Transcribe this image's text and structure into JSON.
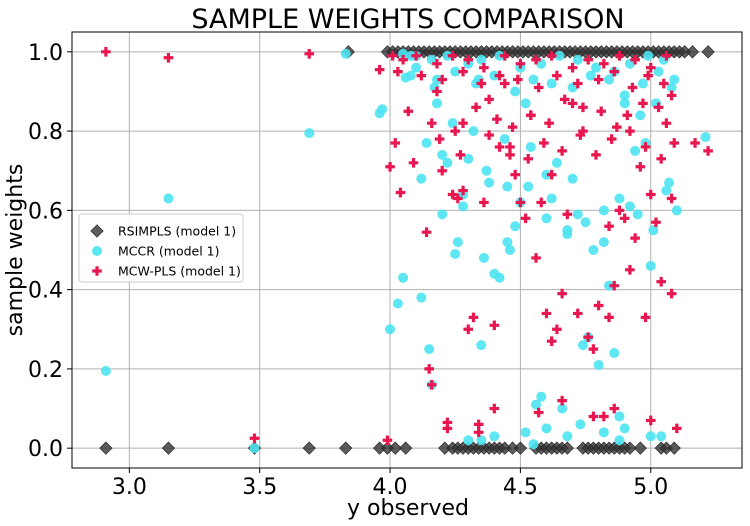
{
  "chart_data": {
    "type": "scatter",
    "title": "SAMPLE WEIGHTS COMPARISON",
    "xlabel": "y observed",
    "ylabel": "sample weights",
    "xlim": [
      2.78,
      5.35
    ],
    "ylim": [
      -0.05,
      1.05
    ],
    "xticks": [
      3.0,
      3.5,
      4.0,
      4.5,
      5.0
    ],
    "xtick_labels": [
      "3.0",
      "3.5",
      "4.0",
      "4.5",
      "5.0"
    ],
    "yticks": [
      0.0,
      0.2,
      0.4,
      0.6,
      0.8,
      1.0
    ],
    "ytick_labels": [
      "0.0",
      "0.2",
      "0.4",
      "0.6",
      "0.8",
      "1.0"
    ],
    "grid": true,
    "legend_position": "center-left",
    "series": [
      {
        "name": "RSIMPLS (model 1)",
        "marker": "diamond",
        "color": "#333333",
        "x": [
          2.91,
          3.15,
          3.48,
          3.69,
          3.83,
          3.96,
          3.99,
          4.02,
          4.06,
          4.21,
          4.24,
          4.26,
          4.28,
          4.3,
          4.32,
          4.34,
          4.36,
          4.38,
          4.4,
          4.42,
          4.44,
          4.47,
          4.5,
          4.56,
          4.58,
          4.6,
          4.62,
          4.64,
          4.66,
          4.68,
          4.74,
          4.76,
          4.78,
          4.8,
          4.82,
          4.84,
          4.86,
          4.88,
          4.9,
          4.92,
          4.96,
          5.04,
          5.06,
          5.09,
          3.84,
          3.99,
          4.01,
          4.03,
          4.05,
          4.07,
          4.09,
          4.11,
          4.13,
          4.15,
          4.17,
          4.19,
          4.21,
          4.23,
          4.25,
          4.27,
          4.29,
          4.31,
          4.33,
          4.35,
          4.37,
          4.39,
          4.41,
          4.43,
          4.45,
          4.47,
          4.49,
          4.51,
          4.53,
          4.55,
          4.57,
          4.59,
          4.61,
          4.63,
          4.65,
          4.67,
          4.69,
          4.71,
          4.73,
          4.75,
          4.77,
          4.79,
          4.81,
          4.83,
          4.85,
          4.87,
          4.89,
          4.91,
          4.93,
          4.95,
          4.97,
          4.99,
          5.01,
          5.03,
          5.05,
          5.07,
          5.09,
          5.11,
          5.13,
          5.16,
          5.22
        ],
        "y": [
          0.0,
          0.0,
          0.0,
          0.0,
          0.0,
          0.0,
          0.0,
          0.0,
          0.0,
          0.0,
          0.0,
          0.0,
          0.0,
          0.0,
          0.0,
          0.0,
          0.0,
          0.0,
          0.0,
          0.0,
          0.0,
          0.0,
          0.0,
          0.0,
          0.0,
          0.0,
          0.0,
          0.0,
          0.0,
          0.0,
          0.0,
          0.0,
          0.0,
          0.0,
          0.0,
          0.0,
          0.0,
          0.0,
          0.0,
          0.0,
          0.0,
          0.0,
          0.0,
          0.0,
          1.0,
          1.0,
          1.0,
          1.0,
          1.0,
          1.0,
          1.0,
          1.0,
          1.0,
          1.0,
          1.0,
          1.0,
          1.0,
          1.0,
          1.0,
          1.0,
          1.0,
          1.0,
          1.0,
          1.0,
          1.0,
          1.0,
          1.0,
          1.0,
          1.0,
          1.0,
          1.0,
          1.0,
          1.0,
          1.0,
          1.0,
          1.0,
          1.0,
          1.0,
          1.0,
          1.0,
          1.0,
          1.0,
          1.0,
          1.0,
          1.0,
          1.0,
          1.0,
          1.0,
          1.0,
          1.0,
          1.0,
          1.0,
          1.0,
          1.0,
          1.0,
          1.0,
          1.0,
          1.0,
          1.0,
          1.0,
          1.0,
          1.0,
          1.0,
          1.0,
          1.0
        ]
      },
      {
        "name": "MCCR (model 1)",
        "marker": "circle",
        "color": "#4de3f2",
        "x": [
          2.91,
          3.15,
          3.48,
          3.69,
          3.83,
          3.96,
          3.97,
          4.0,
          4.03,
          4.05,
          4.06,
          4.08,
          4.1,
          4.12,
          4.14,
          4.15,
          4.16,
          4.17,
          4.18,
          4.2,
          4.22,
          4.24,
          4.25,
          4.26,
          4.28,
          4.3,
          4.32,
          4.34,
          4.35,
          4.36,
          4.38,
          4.4,
          4.42,
          4.44,
          4.45,
          4.46,
          4.48,
          4.5,
          4.52,
          4.54,
          4.56,
          4.58,
          4.6,
          4.62,
          4.64,
          4.66,
          4.68,
          4.7,
          4.72,
          4.74,
          4.76,
          4.78,
          4.8,
          4.82,
          4.84,
          4.86,
          4.88,
          4.9,
          4.92,
          4.94,
          4.96,
          4.98,
          5.0,
          5.02,
          5.04,
          5.06,
          5.08,
          5.1,
          5.21,
          4.05,
          4.1,
          4.16,
          4.22,
          4.3,
          4.35,
          4.42,
          4.5,
          4.58,
          4.65,
          4.72,
          4.79,
          4.86,
          4.92,
          4.99,
          5.05,
          4.08,
          4.18,
          4.25,
          4.33,
          4.4,
          4.48,
          4.55,
          4.62,
          4.7,
          4.77,
          4.84,
          4.9,
          4.97,
          5.03,
          5.09,
          4.12,
          4.2,
          4.28,
          4.37,
          4.45,
          4.53,
          4.6,
          4.68,
          4.75,
          4.82,
          4.88,
          4.95,
          5.01,
          5.07,
          4.3,
          4.4,
          4.52,
          4.6,
          4.73,
          4.82,
          4.9,
          5.0,
          4.35,
          4.55,
          4.68,
          4.88
        ],
        "y": [
          0.195,
          0.63,
          0.0,
          0.795,
          0.995,
          0.845,
          0.855,
          0.3,
          0.365,
          0.43,
          0.935,
          0.99,
          0.96,
          0.68,
          0.77,
          0.25,
          0.16,
          0.91,
          0.87,
          0.74,
          0.72,
          0.82,
          0.49,
          0.52,
          0.61,
          0.73,
          0.8,
          0.93,
          0.26,
          0.48,
          0.67,
          0.44,
          0.43,
          0.78,
          0.66,
          0.5,
          0.56,
          0.62,
          0.87,
          0.76,
          0.11,
          0.13,
          0.69,
          0.63,
          0.72,
          0.1,
          0.55,
          0.68,
          0.59,
          0.26,
          0.28,
          0.5,
          0.21,
          0.52,
          0.41,
          0.24,
          0.08,
          0.87,
          0.61,
          0.75,
          0.84,
          0.77,
          0.46,
          0.87,
          0.03,
          0.65,
          0.91,
          0.6,
          0.785,
          0.995,
          0.99,
          0.98,
          0.99,
          0.97,
          0.98,
          0.99,
          0.96,
          0.97,
          0.99,
          0.98,
          0.96,
          0.95,
          0.97,
          0.99,
          0.98,
          0.94,
          0.93,
          0.95,
          0.92,
          0.94,
          0.9,
          0.93,
          0.92,
          0.91,
          0.94,
          0.93,
          0.89,
          0.92,
          0.95,
          0.93,
          0.38,
          0.59,
          0.64,
          0.7,
          0.52,
          0.66,
          0.58,
          0.54,
          0.57,
          0.6,
          0.63,
          0.59,
          0.55,
          0.67,
          0.02,
          0.03,
          0.04,
          0.05,
          0.06,
          0.04,
          0.05,
          0.03,
          0.02,
          0.01,
          0.03,
          0.02
        ]
      },
      {
        "name": "MCW-PLS (model 1)",
        "marker": "plus",
        "color": "#e8174f",
        "x": [
          2.91,
          3.15,
          3.48,
          3.69,
          3.96,
          3.99,
          4.0,
          4.02,
          4.04,
          4.14,
          4.15,
          4.16,
          4.18,
          4.2,
          4.22,
          4.24,
          4.26,
          4.28,
          4.3,
          4.32,
          4.34,
          4.36,
          4.38,
          4.4,
          4.42,
          4.44,
          4.46,
          4.48,
          4.5,
          4.52,
          4.54,
          4.56,
          4.58,
          4.6,
          4.62,
          4.64,
          4.66,
          4.68,
          4.7,
          4.72,
          4.74,
          4.76,
          4.78,
          4.8,
          4.82,
          4.84,
          4.86,
          4.88,
          4.9,
          4.92,
          4.94,
          4.96,
          4.98,
          5.0,
          5.02,
          5.04,
          5.06,
          5.08,
          5.1,
          5.17,
          5.22,
          4.01,
          4.05,
          4.1,
          4.18,
          4.24,
          4.3,
          4.36,
          4.44,
          4.5,
          4.56,
          4.62,
          4.7,
          4.76,
          4.82,
          4.88,
          4.94,
          5.0,
          5.06,
          4.03,
          4.12,
          4.2,
          4.28,
          4.35,
          4.42,
          4.49,
          4.57,
          4.64,
          4.72,
          4.8,
          4.86,
          4.93,
          4.99,
          5.05,
          4.07,
          4.16,
          4.25,
          4.33,
          4.41,
          4.47,
          4.54,
          4.61,
          4.67,
          4.74,
          4.81,
          4.87,
          4.91,
          4.97,
          5.03,
          5.08,
          4.09,
          4.19,
          4.27,
          4.38,
          4.46,
          4.53,
          4.59,
          4.66,
          4.73,
          4.79,
          4.85,
          4.92,
          4.98,
          5.04,
          5.09,
          4.22,
          4.34,
          4.4,
          4.57,
          4.66,
          4.78,
          4.86,
          5.0,
          4.28,
          4.62,
          4.84,
          5.08
        ],
        "y": [
          1.0,
          0.985,
          0.025,
          0.995,
          0.955,
          0.02,
          0.71,
          0.77,
          0.645,
          0.545,
          0.2,
          0.16,
          0.9,
          0.7,
          0.065,
          0.64,
          0.63,
          0.82,
          0.3,
          0.33,
          0.04,
          0.62,
          0.88,
          0.31,
          0.76,
          0.92,
          0.74,
          0.69,
          0.62,
          0.58,
          0.84,
          0.48,
          0.62,
          0.34,
          0.27,
          0.3,
          0.39,
          0.59,
          0.87,
          0.34,
          0.8,
          0.28,
          0.25,
          0.36,
          0.08,
          0.33,
          0.41,
          0.6,
          0.58,
          0.45,
          0.53,
          0.71,
          0.33,
          0.64,
          0.57,
          0.42,
          0.82,
          0.39,
          0.05,
          0.77,
          0.75,
          0.99,
          0.98,
          0.99,
          0.97,
          0.99,
          0.98,
          0.96,
          0.99,
          0.97,
          0.98,
          0.99,
          0.96,
          0.98,
          0.97,
          0.99,
          0.98,
          0.96,
          0.99,
          0.95,
          0.94,
          0.93,
          0.95,
          0.92,
          0.94,
          0.93,
          0.91,
          0.94,
          0.92,
          0.93,
          0.95,
          0.91,
          0.94,
          0.92,
          0.85,
          0.82,
          0.8,
          0.86,
          0.83,
          0.81,
          0.84,
          0.82,
          0.88,
          0.86,
          0.85,
          0.81,
          0.84,
          0.87,
          0.86,
          0.89,
          0.72,
          0.78,
          0.74,
          0.79,
          0.76,
          0.73,
          0.77,
          0.75,
          0.79,
          0.74,
          0.78,
          0.8,
          0.76,
          0.73,
          0.77,
          0.05,
          0.06,
          0.1,
          0.09,
          0.12,
          0.08,
          0.1,
          0.07,
          0.65,
          0.69,
          0.56,
          0.63
        ]
      }
    ]
  }
}
